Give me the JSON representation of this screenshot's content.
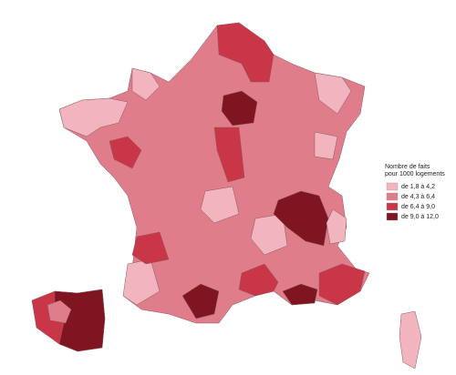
{
  "legend": {
    "title": [
      "Nombre de faits",
      "pour 1000 logements"
    ],
    "classes": [
      {
        "label": "de  1,8 à  4,2",
        "color": "#f2b5bf"
      },
      {
        "label": "de  4,3 à  6,4",
        "color": "#df7d8b"
      },
      {
        "label": "de  6,4 à  9,0",
        "color": "#c93647"
      },
      {
        "label": "de  9,0 à 12,0",
        "color": "#7e1520"
      }
    ]
  }
}
